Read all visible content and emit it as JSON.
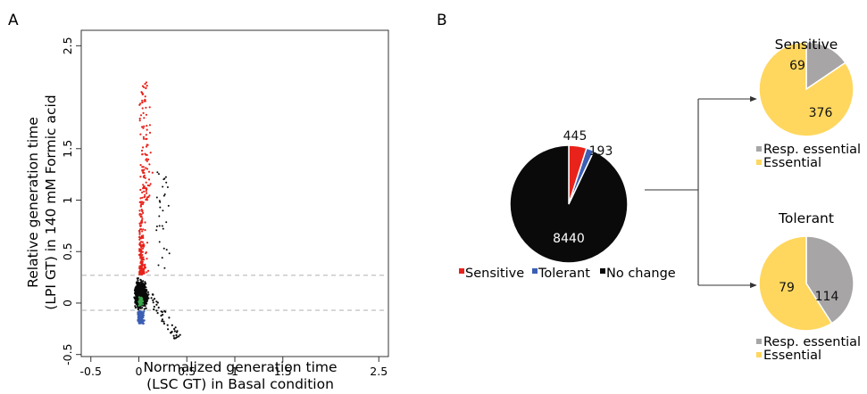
{
  "panel_labels": {
    "a": "A",
    "b": "B"
  },
  "colors": {
    "sensitive": "#e8231b",
    "tolerant": "#3c5fb4",
    "no_change": "#0a0a0a",
    "neutral_green": "#3aa54a",
    "resp_essential": "#a7a5a6",
    "essential": "#ffd75e",
    "threshold_line": "#b9b9b9"
  },
  "chart_data": [
    {
      "id": "scatter",
      "type": "scatter",
      "title": "",
      "xlabel": [
        "Normalized generation time",
        "(LSC GT) in Basal condition"
      ],
      "ylabel": [
        "Relative generation time",
        "(LPI GT) in 140 mM Formic acid"
      ],
      "xlim": [
        -0.6,
        2.6
      ],
      "ylim": [
        -0.52,
        2.65
      ],
      "xticks": [
        "-0.5",
        "0",
        "0.5",
        "1",
        "1.5",
        "2.5"
      ],
      "yticks": [
        "-0.5",
        "0",
        "0.5",
        "1",
        "1.5",
        "2.5"
      ],
      "thresholds_y": [
        0.27,
        -0.07
      ],
      "grid": false,
      "series": [
        {
          "id": "sensitive",
          "n": 445,
          "x_range": [
            -0.02,
            0.25
          ],
          "y_range": [
            0.27,
            2.15
          ]
        },
        {
          "id": "tolerant",
          "n": 193,
          "x_range": [
            -0.05,
            0.15
          ],
          "y_range": [
            -0.2,
            -0.07
          ]
        },
        {
          "id": "no_change",
          "n": 8440,
          "x_range": [
            -0.1,
            0.45
          ],
          "y_range": [
            -0.45,
            0.5
          ]
        }
      ]
    },
    {
      "id": "pie-main",
      "type": "pie",
      "slices": [
        {
          "key": "sensitive",
          "label": "445",
          "value": 445
        },
        {
          "key": "tolerant",
          "label": "193",
          "value": 193
        },
        {
          "key": "no_change",
          "label": "8440",
          "value": 8440
        }
      ],
      "legend": [
        {
          "key": "sensitive",
          "label": "Sensitive"
        },
        {
          "key": "tolerant",
          "label": "Tolerant"
        },
        {
          "key": "no_change",
          "label": "No change"
        }
      ]
    },
    {
      "id": "pie-sensitive",
      "type": "pie",
      "title": "Sensitive",
      "slices": [
        {
          "key": "resp_essential",
          "label": "69",
          "value": 69
        },
        {
          "key": "essential",
          "label": "376",
          "value": 376
        }
      ],
      "legend": [
        {
          "key": "resp_essential",
          "label": "Resp. essential"
        },
        {
          "key": "essential",
          "label": "Essential"
        }
      ]
    },
    {
      "id": "pie-tolerant",
      "type": "pie",
      "title": "Tolerant",
      "slices": [
        {
          "key": "resp_essential",
          "label": "79",
          "value": 79
        },
        {
          "key": "essential",
          "label": "114",
          "value": 114
        }
      ],
      "legend": [
        {
          "key": "resp_essential",
          "label": "Resp. essential"
        },
        {
          "key": "essential",
          "label": "Essential"
        }
      ]
    }
  ]
}
